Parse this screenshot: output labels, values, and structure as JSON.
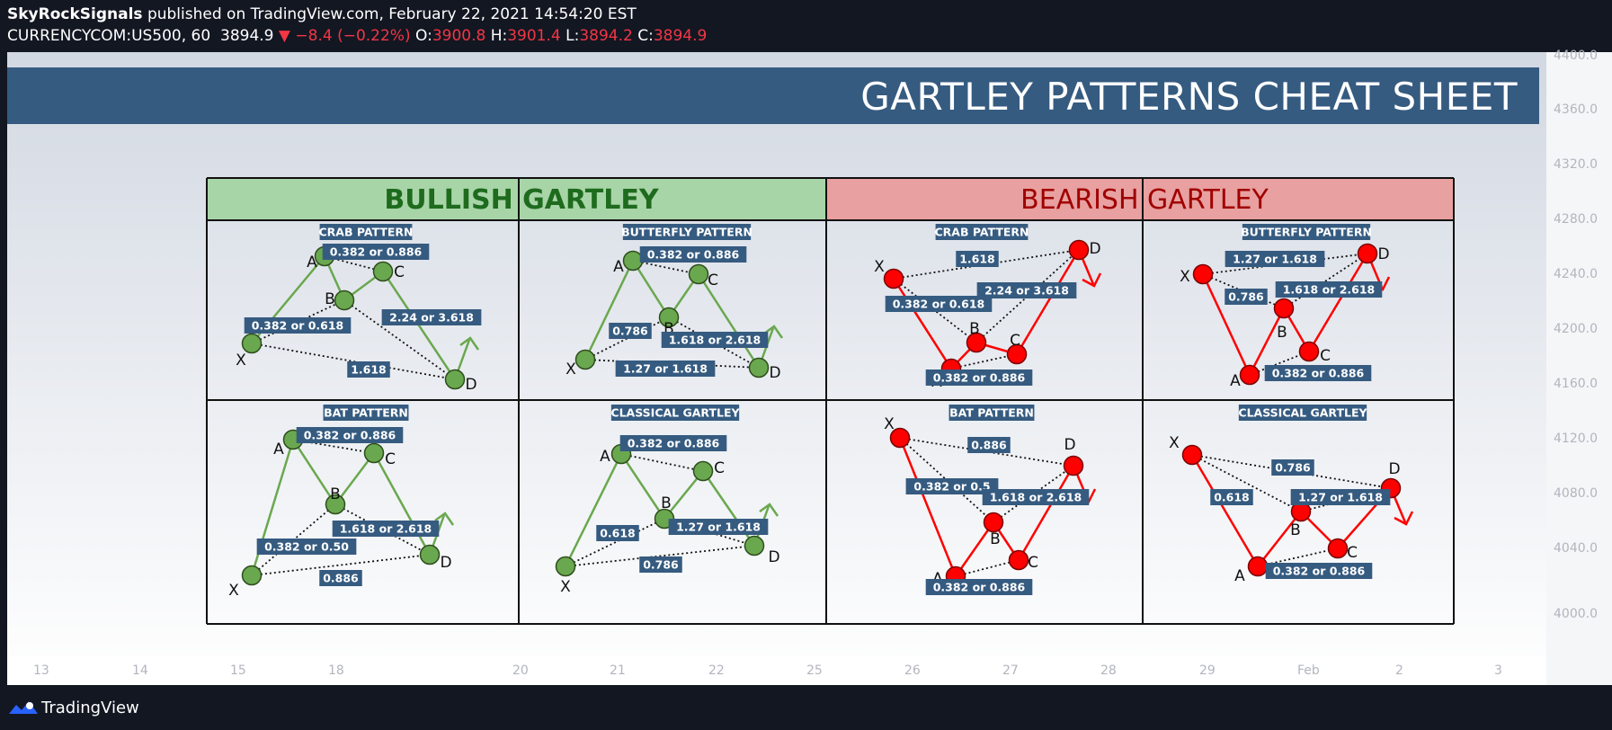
{
  "header": {
    "publisher": "SkyRockSignals",
    "published_text": "published on TradingView.com, February 22, 2021 14:54:20 EST",
    "symbol": "CURRENCYCOM:US500, 60",
    "last": "3894.9",
    "change": "−8.4 (−0.22%)",
    "o_label": "O:",
    "o_value": "3900.8",
    "h_label": "H:",
    "h_value": "3901.4",
    "l_label": "L:",
    "l_value": "3894.2",
    "c_label": "C:",
    "c_value": "3894.9"
  },
  "banner_title": "GARTLEY PATTERNS CHEAT SHEET",
  "sections": {
    "bullish": "BULLISH GARTLEY",
    "bearish": "BEARISH GARTLEY"
  },
  "patterns": [
    {
      "title": "CRAB PATTERN",
      "labels": [
        "0.382 or 0.886",
        "0.382 or 0.618",
        "2.24 or 3.618",
        "1.618"
      ]
    },
    {
      "title": "BUTTERFLY PATTERN",
      "labels": [
        "0.382 or 0.886",
        "0.786",
        "1.618 or 2.618",
        "1.27 or 1.618"
      ]
    },
    {
      "title": "CRAB PATTERN",
      "labels": [
        "1.618",
        "0.382 or 0.618",
        "2.24 or 3.618",
        "0.382 or 0.886"
      ]
    },
    {
      "title": "BUTTERFLY PATTERN",
      "labels": [
        "1.27 or 1.618",
        "0.786",
        "1.618 or 2.618",
        "0.382 or 0.886"
      ]
    },
    {
      "title": "BAT PATTERN",
      "labels": [
        "0.382 or 0.886",
        "1.618 or 2.618",
        "0.382 or 0.50",
        "0.886"
      ]
    },
    {
      "title": "CLASSICAL GARTLEY",
      "labels": [
        "0.382 or 0.886",
        "0.618",
        "1.27 or 1.618",
        "0.786"
      ]
    },
    {
      "title": "BAT PATTERN",
      "labels": [
        "0.886",
        "0.382 or 0.5",
        "1.618 or 2.618",
        "0.382 or 0.886"
      ]
    },
    {
      "title": "CLASSICAL GARTLEY",
      "labels": [
        "0.786",
        "0.618",
        "1.27 or 1.618",
        "0.382 or 0.886"
      ]
    }
  ],
  "point_letters": [
    "X",
    "A",
    "B",
    "C",
    "D"
  ],
  "price_axis": [
    "4400.0",
    "4360.0",
    "4320.0",
    "4280.0",
    "4240.0",
    "4200.0",
    "4160.0",
    "4120.0",
    "4080.0",
    "4040.0",
    "4000.0"
  ],
  "time_axis": [
    "13",
    "14",
    "15",
    "18",
    "20",
    "21",
    "22",
    "25",
    "26",
    "27",
    "28",
    "29",
    "Feb",
    "2",
    "3"
  ],
  "footer": "TradingView",
  "colors": {
    "bull_node": "#6aa84f",
    "bear_node": "#ff0000",
    "bull_header": "#a8d5a8",
    "bear_header": "#e8a0a0",
    "label_bg": "#365b80"
  }
}
